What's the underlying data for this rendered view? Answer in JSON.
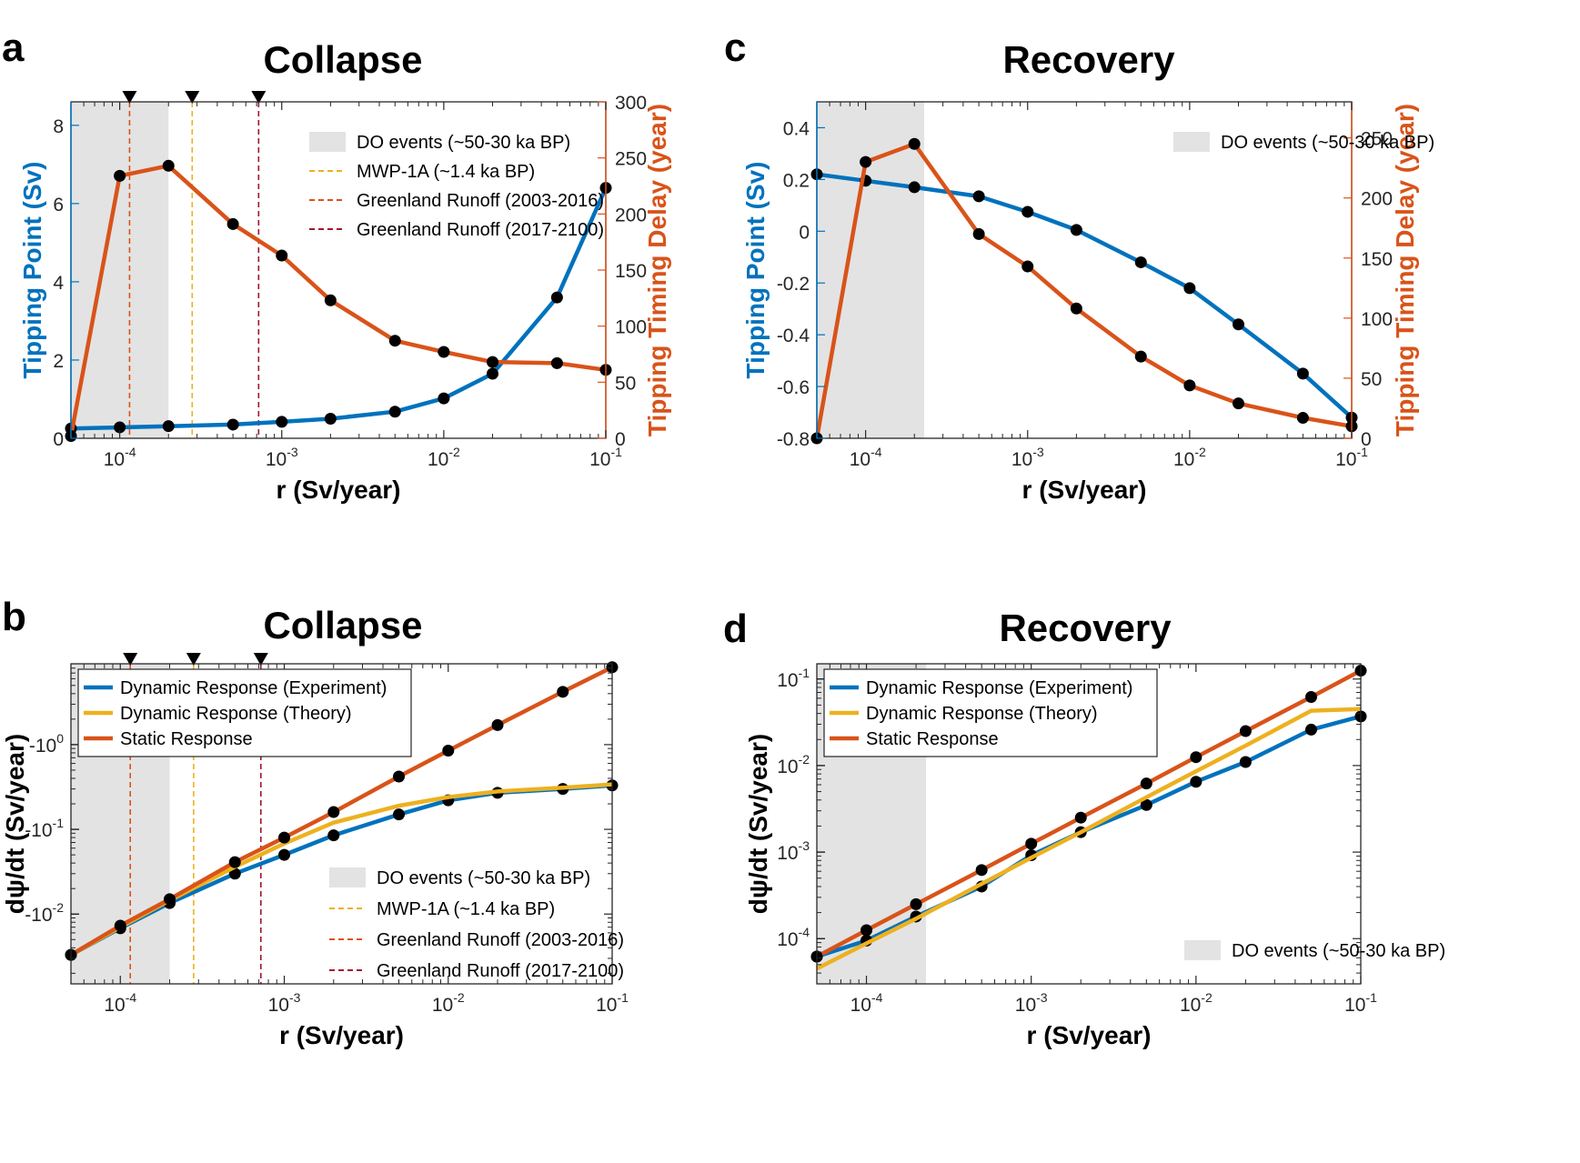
{
  "colors": {
    "blue": "#0072BD",
    "orange": "#D95319",
    "yellow": "#EDB120",
    "darkred": "#A2142F",
    "shade": "#e3e3e3",
    "axis": "#262626"
  },
  "chart_data": [
    {
      "id": "a",
      "panel_label": "a",
      "title": "Collapse",
      "type": "line",
      "xlabel": "r (Sv/year)",
      "xscale": "log",
      "xlim": [
        5e-05,
        0.1
      ],
      "ylabel": "Tipping Point (Sv)",
      "ylim": [
        0,
        8.6
      ],
      "yticks": [
        0,
        2,
        4,
        6,
        8
      ],
      "y2label": "Tipping Timing Delay (year)",
      "y2lim": [
        0,
        300
      ],
      "y2ticks": [
        0,
        50,
        100,
        150,
        200,
        250,
        300
      ],
      "x": [
        5e-05,
        0.0001,
        0.0002,
        0.0005,
        0.001,
        0.002,
        0.005,
        0.01,
        0.02,
        0.05,
        0.1
      ],
      "series": [
        {
          "name": "Tipping Point",
          "axis": "left",
          "color": "blue",
          "values": [
            0.25,
            0.28,
            0.31,
            0.35,
            0.42,
            0.5,
            0.68,
            1.02,
            1.65,
            3.6,
            6.4
          ]
        },
        {
          "name": "Tipping Timing Delay",
          "axis": "right",
          "color": "orange",
          "values": [
            2,
            234,
            243,
            191,
            163,
            123,
            87,
            77,
            68,
            67,
            61
          ]
        }
      ],
      "shaded_region": {
        "label": "DO events (~50-30 ka BP)",
        "x": [
          5e-05,
          0.0002
        ]
      },
      "vlines": [
        {
          "label": "MWP-1A (~1.4 ka BP)",
          "x": 0.00028,
          "color": "yellow",
          "marker": true
        },
        {
          "label": "Greenland Runoff (2003-2016)",
          "x": 0.000115,
          "color": "orange",
          "marker": true
        },
        {
          "label": "Greenland Runoff (2017-2100)",
          "x": 0.00072,
          "color": "darkred",
          "marker": true
        }
      ],
      "legend": {
        "position": "top-right",
        "entries": [
          "DO events (~50-30 ka BP)",
          "MWP-1A (~1.4 ka BP)",
          "Greenland Runoff (2003-2016)",
          "Greenland Runoff (2017-2100)"
        ]
      }
    },
    {
      "id": "c",
      "panel_label": "c",
      "title": "Recovery",
      "type": "line",
      "xlabel": "r (Sv/year)",
      "xscale": "log",
      "xlim": [
        5e-05,
        0.1
      ],
      "ylabel": "Tipping Point (Sv)",
      "ylim": [
        -0.8,
        0.5
      ],
      "yticks": [
        -0.8,
        -0.6,
        -0.4,
        -0.2,
        0,
        0.2,
        0.4
      ],
      "y2label": "Tipping Timing Delay (year)",
      "y2lim": [
        0,
        280
      ],
      "y2ticks": [
        0,
        50,
        100,
        150,
        200,
        250
      ],
      "x": [
        5e-05,
        0.0001,
        0.0002,
        0.0005,
        0.001,
        0.002,
        0.005,
        0.01,
        0.02,
        0.05,
        0.1
      ],
      "series": [
        {
          "name": "Tipping Point",
          "axis": "left",
          "color": "blue",
          "values": [
            0.22,
            0.195,
            0.17,
            0.135,
            0.075,
            0.005,
            -0.12,
            -0.22,
            -0.36,
            -0.55,
            -0.72
          ]
        },
        {
          "name": "Tipping Timing Delay",
          "axis": "right",
          "color": "orange",
          "values": [
            0,
            230,
            245,
            170,
            143,
            108,
            68,
            44,
            29,
            17,
            10
          ]
        }
      ],
      "shaded_region": {
        "label": "DO events (~50-30 ka BP)",
        "x": [
          5e-05,
          0.00023
        ]
      },
      "legend": {
        "position": "top-right",
        "entries": [
          "DO events (~50-30 ka BP)"
        ]
      }
    },
    {
      "id": "b",
      "panel_label": "b",
      "title": "Collapse",
      "type": "line",
      "xlabel": "r (Sv/year)",
      "xscale": "log",
      "xlim": [
        5e-05,
        0.1
      ],
      "ylabel": "dψ/dt (Sv/year)",
      "yscale": "log",
      "ylim": [
        0.0015,
        9
      ],
      "yticks": [
        0.01,
        0.1,
        1
      ],
      "ytick_labels": [
        "-10",
        "-10",
        "-10"
      ],
      "ytick_exponents": [
        "-2",
        "-1",
        "0"
      ],
      "x": [
        5e-05,
        0.0001,
        0.0002,
        0.0005,
        0.001,
        0.002,
        0.005,
        0.01,
        0.02,
        0.05,
        0.1
      ],
      "series": [
        {
          "name": "Dynamic Response (Experiment)",
          "color": "blue",
          "values": [
            0.0033,
            0.0068,
            0.0135,
            0.03,
            0.05,
            0.085,
            0.15,
            0.22,
            0.27,
            0.3,
            0.33
          ]
        },
        {
          "name": "Dynamic Response (Theory)",
          "color": "yellow",
          "values": [
            0.0033,
            0.007,
            0.0145,
            0.036,
            0.068,
            0.12,
            0.19,
            0.24,
            0.28,
            0.31,
            0.34
          ]
        },
        {
          "name": "Static Response",
          "color": "orange",
          "values": [
            0.0033,
            0.0073,
            0.015,
            0.041,
            0.08,
            0.16,
            0.42,
            0.85,
            1.7,
            4.2,
            8.2
          ]
        }
      ],
      "shaded_region": {
        "label": "DO events (~50-30 ka BP)",
        "x": [
          5e-05,
          0.0002
        ]
      },
      "vlines": [
        {
          "label": "MWP-1A (~1.4 ka BP)",
          "x": 0.00028,
          "color": "yellow",
          "marker": true
        },
        {
          "label": "Greenland Runoff (2003-2016)",
          "x": 0.000115,
          "color": "orange",
          "marker": true
        },
        {
          "label": "Greenland Runoff (2017-2100)",
          "x": 0.00072,
          "color": "darkred",
          "marker": true
        }
      ],
      "legend_top": {
        "position": "top-left",
        "entries": [
          "Dynamic Response (Experiment)",
          "Dynamic Response (Theory)",
          "Static Response"
        ]
      },
      "legend": {
        "position": "bottom-right",
        "entries": [
          "DO events (~50-30 ka BP)",
          "MWP-1A (~1.4 ka BP)",
          "Greenland Runoff (2003-2016)",
          "Greenland Runoff (2017-2100)"
        ]
      }
    },
    {
      "id": "d",
      "panel_label": "d",
      "title": "Recovery",
      "type": "line",
      "xlabel": "r (Sv/year)",
      "xscale": "log",
      "xlim": [
        5e-05,
        0.1
      ],
      "ylabel": "dψ/dt (Sv/year)",
      "yscale": "log",
      "ylim": [
        3e-05,
        0.15
      ],
      "yticks": [
        0.0001,
        0.001,
        0.01,
        0.1
      ],
      "ytick_labels": [
        "10",
        "10",
        "10",
        "10"
      ],
      "ytick_exponents": [
        "-4",
        "-3",
        "-2",
        "-1"
      ],
      "x": [
        5e-05,
        0.0001,
        0.0002,
        0.0005,
        0.001,
        0.002,
        0.005,
        0.01,
        0.02,
        0.05,
        0.1
      ],
      "series": [
        {
          "name": "Dynamic Response (Experiment)",
          "color": "blue",
          "values": [
            6.2e-05,
            9.5e-05,
            0.00018,
            0.0004,
            0.00092,
            0.0017,
            0.0035,
            0.0065,
            0.011,
            0.026,
            0.037
          ]
        },
        {
          "name": "Dynamic Response (Theory)",
          "color": "yellow",
          "values": [
            4.5e-05,
            8.8e-05,
            0.00017,
            0.00043,
            0.00086,
            0.0017,
            0.0043,
            0.0086,
            0.017,
            0.043,
            0.045
          ]
        },
        {
          "name": "Static Response",
          "color": "orange",
          "values": [
            6.2e-05,
            0.000125,
            0.00025,
            0.00062,
            0.00125,
            0.0025,
            0.0062,
            0.0125,
            0.025,
            0.062,
            0.125
          ]
        }
      ],
      "shaded_region": {
        "label": "DO events (~50-30 ka BP)",
        "x": [
          5e-05,
          0.00023
        ]
      },
      "legend_top": {
        "position": "top-left",
        "entries": [
          "Dynamic Response (Experiment)",
          "Dynamic Response (Theory)",
          "Static Response"
        ]
      },
      "legend": {
        "position": "bottom-right",
        "entries": [
          "DO events (~50-30 ka BP)"
        ]
      }
    }
  ],
  "xtick_base": "10",
  "xtick_exponents": [
    "-4",
    "-3",
    "-2",
    "-1"
  ]
}
